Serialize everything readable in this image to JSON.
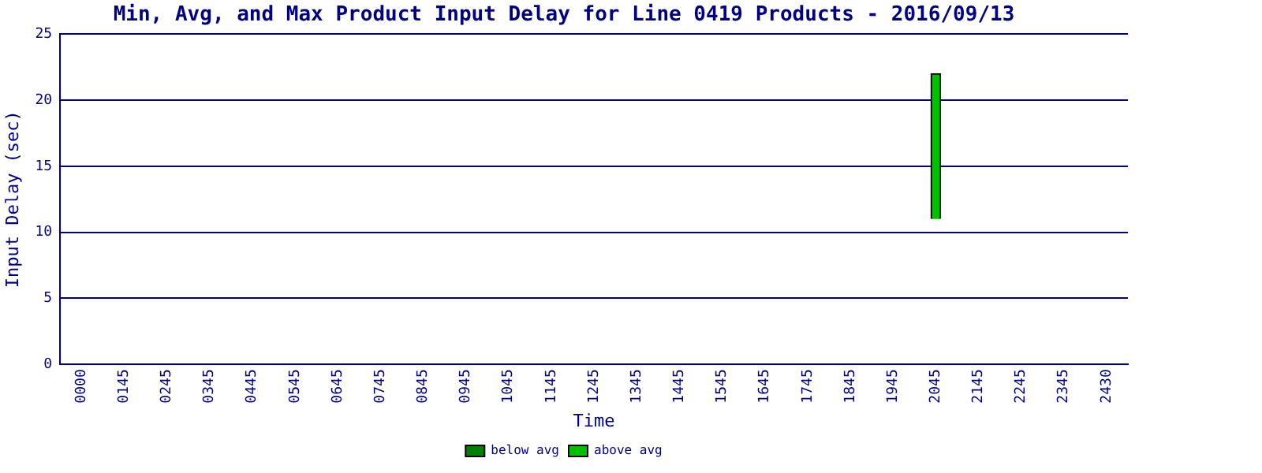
{
  "chart_data": {
    "type": "bar",
    "title": "Min, Avg, and Max Product Input Delay for Line 0419 Products - 2016/09/13",
    "xlabel": "Time",
    "ylabel": "Input Delay (sec)",
    "categories": [
      "0000",
      "0145",
      "0245",
      "0345",
      "0445",
      "0545",
      "0645",
      "0745",
      "0845",
      "0945",
      "1045",
      "1145",
      "1245",
      "1345",
      "1445",
      "1545",
      "1645",
      "1745",
      "1845",
      "1945",
      "2045",
      "2145",
      "2245",
      "2345",
      "2430"
    ],
    "series": [
      {
        "name": "below avg",
        "color": "#008000",
        "values": [
          null,
          null,
          null,
          null,
          null,
          null,
          null,
          null,
          null,
          null,
          null,
          null,
          null,
          null,
          null,
          null,
          null,
          null,
          null,
          null,
          null,
          null,
          null,
          null,
          null
        ]
      },
      {
        "name": "above avg",
        "color": "#00c000",
        "base": [
          null,
          null,
          null,
          null,
          null,
          null,
          null,
          null,
          null,
          null,
          null,
          null,
          null,
          null,
          null,
          null,
          null,
          null,
          null,
          null,
          11,
          null,
          null,
          null,
          null
        ],
        "values": [
          null,
          null,
          null,
          null,
          null,
          null,
          null,
          null,
          null,
          null,
          null,
          null,
          null,
          null,
          null,
          null,
          null,
          null,
          null,
          null,
          11,
          null,
          null,
          null,
          null
        ]
      }
    ],
    "ylim": [
      0,
      25
    ],
    "yticks": [
      0,
      5,
      10,
      15,
      20,
      25
    ],
    "grid": "y",
    "legend": "bottom"
  }
}
